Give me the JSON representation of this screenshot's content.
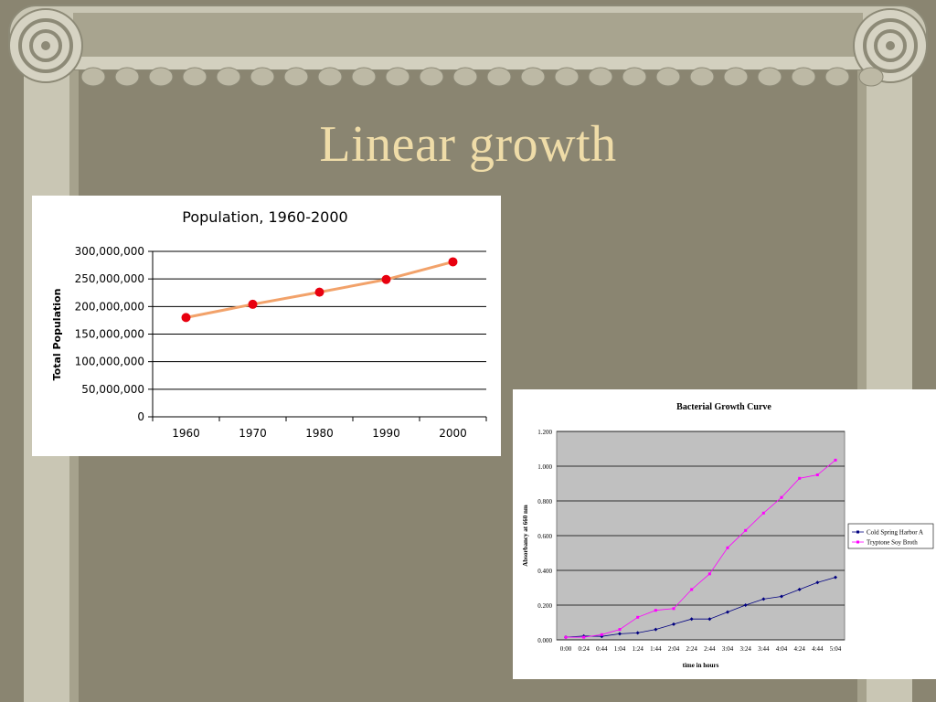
{
  "slide": {
    "title": "Linear growth",
    "colors": {
      "background": "#8a8571",
      "title": "#efdca8",
      "column_stone": "#c9c6b4",
      "column_shadow": "#a6a28d"
    },
    "decoration": "ionic-column-frame"
  },
  "population_chart": {
    "chart_data": {
      "type": "line",
      "title": "Population, 1960-2000",
      "xlabel": "",
      "ylabel": "Total Population",
      "x": [
        1960,
        1970,
        1980,
        1990,
        2000
      ],
      "x_tick_labels": [
        "1960",
        "1970",
        "1980",
        "1990",
        "2000"
      ],
      "y_tick_labels": [
        "300,000,000",
        "250,000,000",
        "200,000,000",
        "150,000,000",
        "100,000,000",
        "50,000,000",
        "0"
      ],
      "y_ticks": [
        300000000,
        250000000,
        200000000,
        150000000,
        100000000,
        50000000,
        0
      ],
      "ylim": [
        0,
        300000000
      ],
      "grid": "horizontal",
      "series": [
        {
          "values": [
            180000000,
            204000000,
            226000000,
            249000000,
            281000000
          ],
          "color": "#e8000f",
          "line_color": "#f2a26a"
        }
      ]
    }
  },
  "bacterial_chart": {
    "chart_data": {
      "type": "line",
      "title": "Bacterial Growth Curve",
      "xlabel": "time in hours",
      "ylabel": "Absorbancy at 660 nm",
      "x_tick_labels": [
        "0:00",
        "0:24",
        "0:44",
        "1:04",
        "1:24",
        "1:44",
        "2:04",
        "2:24",
        "2:44",
        "3:04",
        "3:24",
        "3:44",
        "4:04",
        "4:24",
        "4:44",
        "5:04"
      ],
      "y_tick_labels": [
        "1.200",
        "1.000",
        "0.800",
        "0.600",
        "0.400",
        "0.200",
        "0.000"
      ],
      "y_ticks": [
        1.2,
        1.0,
        0.8,
        0.6,
        0.4,
        0.2,
        0.0
      ],
      "ylim": [
        0,
        1.2
      ],
      "grid": "horizontal",
      "plot_background": "#c0c0c0",
      "legend_position": "right",
      "series": [
        {
          "name": "Cold Spring Harbor A",
          "color": "#000080",
          "values": [
            0.015,
            0.022,
            0.02,
            0.035,
            0.04,
            0.06,
            0.09,
            0.12,
            0.12,
            0.16,
            0.2,
            0.235,
            0.25,
            0.29,
            0.33,
            0.36
          ]
        },
        {
          "name": "Tryptone Soy Broth",
          "color": "#ff00ff",
          "values": [
            0.015,
            0.015,
            0.03,
            0.06,
            0.13,
            0.17,
            0.18,
            0.29,
            0.38,
            0.53,
            0.63,
            0.73,
            0.82,
            0.93,
            0.95,
            1.035
          ]
        }
      ]
    }
  }
}
